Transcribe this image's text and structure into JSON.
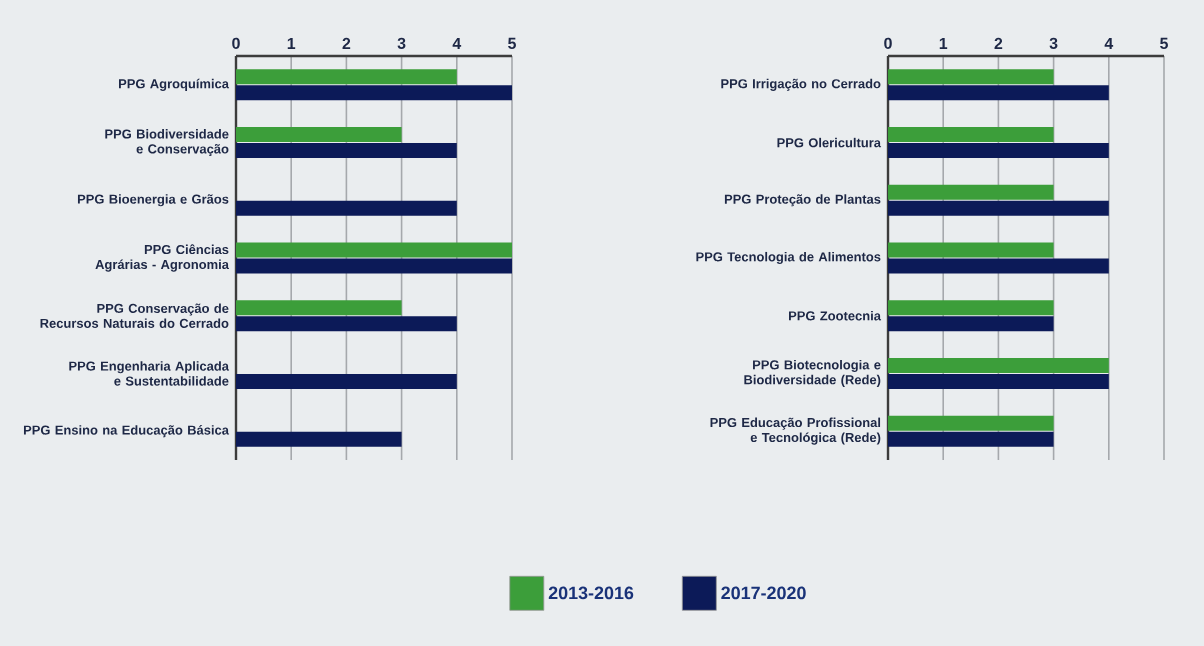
{
  "chart_data": [
    {
      "type": "bar",
      "orientation": "horizontal",
      "categories": [
        "PPG Agroquímica",
        "PPG Biodiversidade e Conservação",
        "PPG Bioenergia e Grãos",
        "PPG Ciências Agrárias - Agronomia",
        "PPG Conservação de Recursos Naturais do Cerrado",
        "PPG Engenharia Aplicada e Sustentabilidade",
        "PPG Ensino na Educação Básica"
      ],
      "series": [
        {
          "name": "2013-2016",
          "color": "#3c9e3a",
          "values": [
            4,
            3,
            null,
            5,
            3,
            null,
            null
          ]
        },
        {
          "name": "2017-2020",
          "color": "#0c1a58",
          "values": [
            5,
            4,
            4,
            5,
            4,
            4,
            3
          ]
        }
      ],
      "xlim": [
        0,
        5
      ],
      "xticks": [
        0,
        1,
        2,
        3,
        4,
        5
      ],
      "grid": "x",
      "legend": "bottom"
    },
    {
      "type": "bar",
      "orientation": "horizontal",
      "categories": [
        "PPG Irrigação no Cerrado",
        "PPG Olericultura",
        "PPG Proteção de Plantas",
        "PPG Tecnologia de Alimentos",
        "PPG Zootecnia",
        "PPG Biotecnologia e Biodiversidade (Rede)",
        "PPG Educação Profissional e Tecnológica (Rede)"
      ],
      "series": [
        {
          "color": "#3c9e3a",
          "values": [
            3,
            3,
            3,
            3,
            3,
            4,
            3
          ]
        },
        {
          "color": "#0c1a58",
          "values": [
            4,
            4,
            4,
            4,
            3,
            4,
            3
          ]
        }
      ],
      "xlim": [
        0,
        5
      ],
      "xticks": [
        0,
        1,
        2,
        3,
        4,
        5
      ],
      "grid": "x"
    }
  ]
}
